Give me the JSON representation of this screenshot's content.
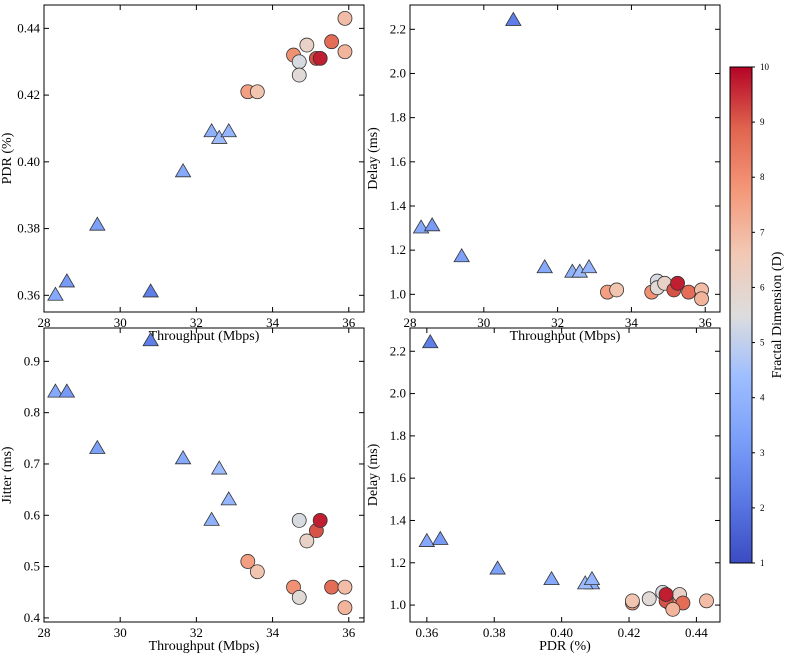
{
  "chart_data": [
    {
      "type": "scatter",
      "panel": "top-left",
      "xlabel": "Throughput (Mbps)",
      "ylabel": "PDR (%)",
      "xlim": [
        28,
        36.4
      ],
      "ylim": [
        0.355,
        0.447
      ],
      "xticks": [
        28,
        30,
        32,
        34,
        36
      ],
      "yticks": [
        0.36,
        0.38,
        0.4,
        0.42,
        0.44
      ],
      "ytick_labels": [
        "0.36",
        "0.38",
        "0.40",
        "0.42",
        "0.44"
      ],
      "grid": false,
      "series": [
        {
          "name": "triangles",
          "marker": "triangle",
          "points": [
            {
              "x": 28.3,
              "y": 0.36,
              "d": 3.6
            },
            {
              "x": 28.6,
              "y": 0.364,
              "d": 3.1
            },
            {
              "x": 29.4,
              "y": 0.381,
              "d": 3.3
            },
            {
              "x": 30.8,
              "y": 0.361,
              "d": 2.3
            },
            {
              "x": 31.65,
              "y": 0.397,
              "d": 3.6
            },
            {
              "x": 32.4,
              "y": 0.409,
              "d": 3.9
            },
            {
              "x": 32.6,
              "y": 0.407,
              "d": 4.3
            },
            {
              "x": 32.85,
              "y": 0.409,
              "d": 4.1
            }
          ]
        },
        {
          "name": "circles",
          "marker": "circle",
          "points": [
            {
              "x": 33.35,
              "y": 0.421,
              "d": 7.6
            },
            {
              "x": 33.6,
              "y": 0.421,
              "d": 6.7
            },
            {
              "x": 34.55,
              "y": 0.432,
              "d": 7.9
            },
            {
              "x": 34.7,
              "y": 0.43,
              "d": 5.4
            },
            {
              "x": 34.7,
              "y": 0.426,
              "d": 5.7
            },
            {
              "x": 34.9,
              "y": 0.435,
              "d": 6.1
            },
            {
              "x": 35.15,
              "y": 0.431,
              "d": 9.1
            },
            {
              "x": 35.25,
              "y": 0.431,
              "d": 9.7
            },
            {
              "x": 35.55,
              "y": 0.436,
              "d": 8.7
            },
            {
              "x": 35.9,
              "y": 0.443,
              "d": 6.9
            },
            {
              "x": 35.9,
              "y": 0.433,
              "d": 7.1
            }
          ]
        }
      ]
    },
    {
      "type": "scatter",
      "panel": "top-right",
      "xlabel": "Throughput (Mbps)",
      "ylabel": "Delay (ms)",
      "xlim": [
        28,
        36.4
      ],
      "ylim": [
        0.92,
        2.31
      ],
      "xticks": [
        28,
        30,
        32,
        34,
        36
      ],
      "yticks": [
        1.0,
        1.2,
        1.4,
        1.6,
        1.8,
        2.0,
        2.2
      ],
      "ytick_labels": [
        "1.0",
        "1.2",
        "1.4",
        "1.6",
        "1.8",
        "2.0",
        "2.2"
      ],
      "grid": false,
      "series": [
        {
          "name": "triangles",
          "marker": "triangle",
          "points": [
            {
              "x": 28.3,
              "y": 1.3,
              "d": 3.6
            },
            {
              "x": 28.6,
              "y": 1.31,
              "d": 3.1
            },
            {
              "x": 29.4,
              "y": 1.17,
              "d": 3.3
            },
            {
              "x": 30.8,
              "y": 2.24,
              "d": 2.3
            },
            {
              "x": 31.65,
              "y": 1.12,
              "d": 3.6
            },
            {
              "x": 32.4,
              "y": 1.1,
              "d": 3.9
            },
            {
              "x": 32.6,
              "y": 1.1,
              "d": 4.3
            },
            {
              "x": 32.85,
              "y": 1.12,
              "d": 4.1
            }
          ]
        },
        {
          "name": "circles",
          "marker": "circle",
          "points": [
            {
              "x": 33.35,
              "y": 1.01,
              "d": 7.6
            },
            {
              "x": 33.6,
              "y": 1.02,
              "d": 6.7
            },
            {
              "x": 34.55,
              "y": 1.01,
              "d": 7.9
            },
            {
              "x": 34.7,
              "y": 1.06,
              "d": 5.4
            },
            {
              "x": 34.7,
              "y": 1.03,
              "d": 5.7
            },
            {
              "x": 34.9,
              "y": 1.05,
              "d": 6.1
            },
            {
              "x": 35.15,
              "y": 1.02,
              "d": 9.1
            },
            {
              "x": 35.25,
              "y": 1.05,
              "d": 9.7
            },
            {
              "x": 35.55,
              "y": 1.01,
              "d": 8.7
            },
            {
              "x": 35.9,
              "y": 1.02,
              "d": 6.9
            },
            {
              "x": 35.9,
              "y": 0.98,
              "d": 7.1
            }
          ]
        }
      ]
    },
    {
      "type": "scatter",
      "panel": "bottom-left",
      "xlabel": "Throughput (Mbps)",
      "ylabel": "Jitter (ms)",
      "xlim": [
        28,
        36.4
      ],
      "ylim": [
        0.392,
        0.965
      ],
      "xticks": [
        28,
        30,
        32,
        34,
        36
      ],
      "yticks": [
        0.4,
        0.5,
        0.6,
        0.7,
        0.8,
        0.9
      ],
      "ytick_labels": [
        "0.4",
        "0.5",
        "0.6",
        "0.7",
        "0.8",
        "0.9"
      ],
      "grid": false,
      "series": [
        {
          "name": "triangles",
          "marker": "triangle",
          "points": [
            {
              "x": 28.3,
              "y": 0.84,
              "d": 3.6
            },
            {
              "x": 28.6,
              "y": 0.84,
              "d": 3.1
            },
            {
              "x": 29.4,
              "y": 0.73,
              "d": 3.3
            },
            {
              "x": 30.8,
              "y": 0.94,
              "d": 2.3
            },
            {
              "x": 31.65,
              "y": 0.71,
              "d": 3.6
            },
            {
              "x": 32.4,
              "y": 0.59,
              "d": 3.9
            },
            {
              "x": 32.6,
              "y": 0.69,
              "d": 4.3
            },
            {
              "x": 32.85,
              "y": 0.63,
              "d": 4.1
            }
          ]
        },
        {
          "name": "circles",
          "marker": "circle",
          "points": [
            {
              "x": 33.35,
              "y": 0.51,
              "d": 7.6
            },
            {
              "x": 33.6,
              "y": 0.49,
              "d": 6.7
            },
            {
              "x": 34.55,
              "y": 0.46,
              "d": 7.9
            },
            {
              "x": 34.7,
              "y": 0.59,
              "d": 5.4
            },
            {
              "x": 34.7,
              "y": 0.44,
              "d": 5.7
            },
            {
              "x": 34.9,
              "y": 0.55,
              "d": 6.1
            },
            {
              "x": 35.15,
              "y": 0.57,
              "d": 9.1
            },
            {
              "x": 35.25,
              "y": 0.59,
              "d": 9.7
            },
            {
              "x": 35.55,
              "y": 0.46,
              "d": 8.7
            },
            {
              "x": 35.9,
              "y": 0.46,
              "d": 6.9
            },
            {
              "x": 35.9,
              "y": 0.42,
              "d": 7.1
            }
          ]
        }
      ]
    },
    {
      "type": "scatter",
      "panel": "bottom-right",
      "xlabel": "PDR (%)",
      "ylabel": "Delay (ms)",
      "xlim": [
        0.355,
        0.447
      ],
      "ylim": [
        0.92,
        2.31
      ],
      "xticks": [
        0.36,
        0.38,
        0.4,
        0.42,
        0.44
      ],
      "xtick_labels": [
        "0.36",
        "0.38",
        "0.40",
        "0.42",
        "0.44"
      ],
      "yticks": [
        1.0,
        1.2,
        1.4,
        1.6,
        1.8,
        2.0,
        2.2
      ],
      "ytick_labels": [
        "1.0",
        "1.2",
        "1.4",
        "1.6",
        "1.8",
        "2.0",
        "2.2"
      ],
      "grid": false,
      "series": [
        {
          "name": "triangles",
          "marker": "triangle",
          "points": [
            {
              "x": 0.36,
              "y": 1.3,
              "d": 3.6
            },
            {
              "x": 0.364,
              "y": 1.31,
              "d": 3.1
            },
            {
              "x": 0.381,
              "y": 1.17,
              "d": 3.3
            },
            {
              "x": 0.361,
              "y": 2.24,
              "d": 2.3
            },
            {
              "x": 0.397,
              "y": 1.12,
              "d": 3.6
            },
            {
              "x": 0.409,
              "y": 1.1,
              "d": 3.9
            },
            {
              "x": 0.407,
              "y": 1.1,
              "d": 4.3
            },
            {
              "x": 0.409,
              "y": 1.12,
              "d": 4.1
            }
          ]
        },
        {
          "name": "circles",
          "marker": "circle",
          "points": [
            {
              "x": 0.421,
              "y": 1.01,
              "d": 7.6
            },
            {
              "x": 0.421,
              "y": 1.02,
              "d": 6.7
            },
            {
              "x": 0.432,
              "y": 1.01,
              "d": 7.9
            },
            {
              "x": 0.43,
              "y": 1.06,
              "d": 5.4
            },
            {
              "x": 0.426,
              "y": 1.03,
              "d": 5.7
            },
            {
              "x": 0.435,
              "y": 1.05,
              "d": 6.1
            },
            {
              "x": 0.431,
              "y": 1.02,
              "d": 9.1
            },
            {
              "x": 0.431,
              "y": 1.05,
              "d": 9.7
            },
            {
              "x": 0.436,
              "y": 1.01,
              "d": 8.7
            },
            {
              "x": 0.443,
              "y": 1.02,
              "d": 6.9
            },
            {
              "x": 0.433,
              "y": 0.98,
              "d": 7.1
            }
          ]
        }
      ]
    }
  ],
  "colorbar": {
    "label": "Fractal Dimension (D)",
    "range": [
      1,
      10
    ],
    "ticks": [
      1,
      2,
      3,
      4,
      5,
      6,
      7,
      8,
      9,
      10
    ],
    "colormap": "coolwarm",
    "colors": {
      "low": "#3b4cc0",
      "mid": "#dddddd",
      "high": "#b40426"
    }
  }
}
